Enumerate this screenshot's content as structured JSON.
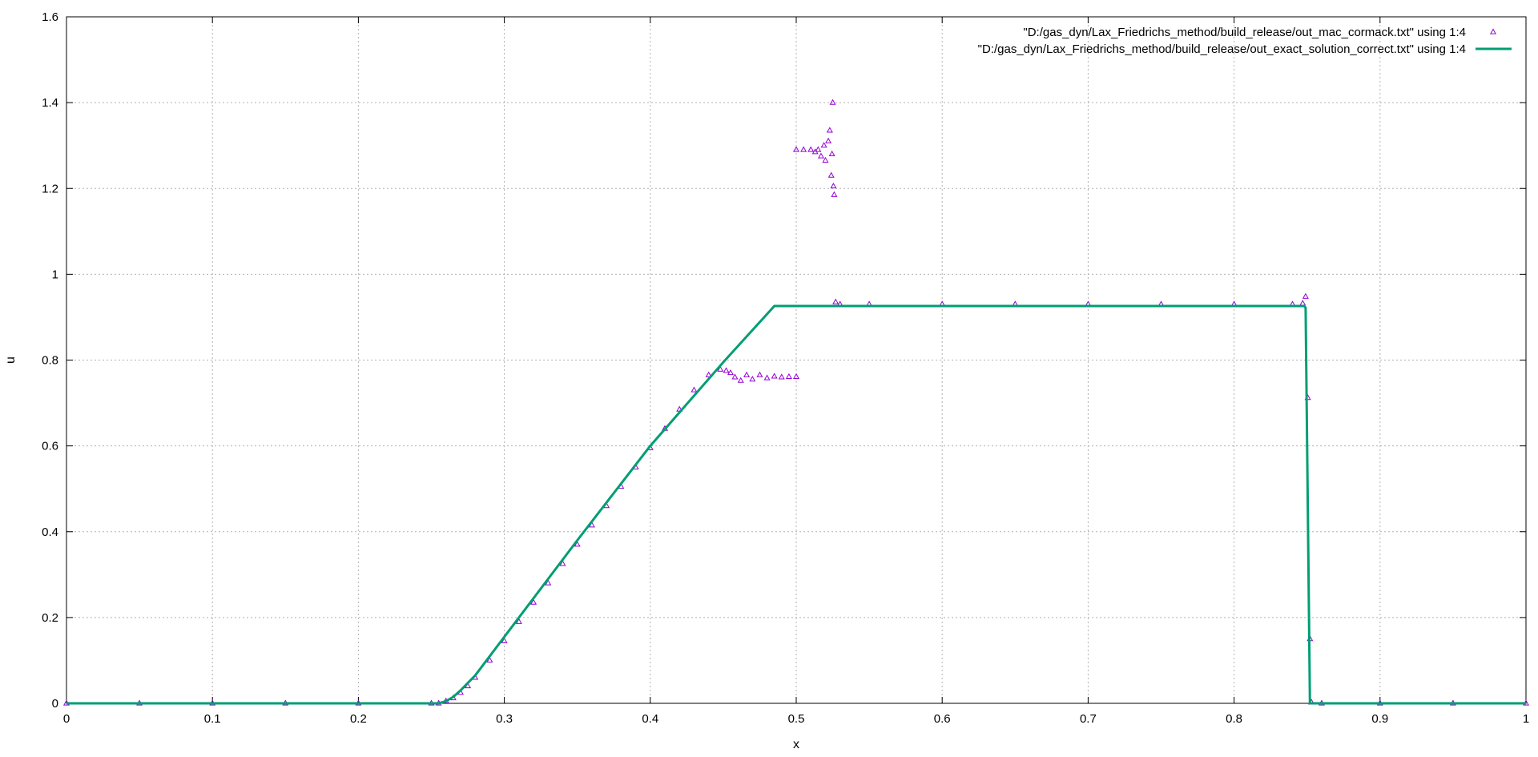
{
  "chart_data": {
    "type": "line",
    "xlabel": "x",
    "ylabel": "u",
    "xlim": [
      0,
      1
    ],
    "ylim": [
      0,
      1.6
    ],
    "x_ticks": [
      "0",
      "0.1",
      "0.2",
      "0.3",
      "0.4",
      "0.5",
      "0.6",
      "0.7",
      "0.8",
      "0.9",
      "1"
    ],
    "y_ticks": [
      "0",
      "0.2",
      "0.4",
      "0.6",
      "0.8",
      "1",
      "1.2",
      "1.4",
      "1.6"
    ],
    "x_tick_values": [
      0,
      0.1,
      0.2,
      0.3,
      0.4,
      0.5,
      0.6,
      0.7,
      0.8,
      0.9,
      1.0
    ],
    "y_tick_values": [
      0,
      0.2,
      0.4,
      0.6,
      0.8,
      1.0,
      1.2,
      1.4,
      1.6
    ],
    "grid": true,
    "legend_position": "top-right",
    "series": [
      {
        "name": "\"D:/gas_dyn/Lax_Friedrichs_method/build_release/out_mac_cormack.txt\" using 1:4",
        "style": "points",
        "marker": "triangle",
        "color": "#9400d3",
        "points": [
          [
            0.0,
            0.0
          ],
          [
            0.05,
            0.0
          ],
          [
            0.1,
            0.0
          ],
          [
            0.15,
            0.0
          ],
          [
            0.2,
            0.0
          ],
          [
            0.25,
            0.0
          ],
          [
            0.255,
            0.0
          ],
          [
            0.26,
            0.005
          ],
          [
            0.265,
            0.012
          ],
          [
            0.27,
            0.025
          ],
          [
            0.275,
            0.04
          ],
          [
            0.28,
            0.06
          ],
          [
            0.29,
            0.1
          ],
          [
            0.3,
            0.145
          ],
          [
            0.31,
            0.19
          ],
          [
            0.32,
            0.235
          ],
          [
            0.33,
            0.28
          ],
          [
            0.34,
            0.325
          ],
          [
            0.35,
            0.37
          ],
          [
            0.36,
            0.415
          ],
          [
            0.37,
            0.46
          ],
          [
            0.38,
            0.505
          ],
          [
            0.39,
            0.55
          ],
          [
            0.4,
            0.595
          ],
          [
            0.41,
            0.64
          ],
          [
            0.42,
            0.685
          ],
          [
            0.43,
            0.73
          ],
          [
            0.44,
            0.765
          ],
          [
            0.448,
            0.778
          ],
          [
            0.452,
            0.775
          ],
          [
            0.455,
            0.77
          ],
          [
            0.458,
            0.76
          ],
          [
            0.462,
            0.752
          ],
          [
            0.466,
            0.765
          ],
          [
            0.47,
            0.755
          ],
          [
            0.475,
            0.765
          ],
          [
            0.48,
            0.758
          ],
          [
            0.485,
            0.762
          ],
          [
            0.49,
            0.76
          ],
          [
            0.495,
            0.761
          ],
          [
            0.5,
            0.761
          ],
          [
            0.5,
            1.29
          ],
          [
            0.505,
            1.29
          ],
          [
            0.51,
            1.29
          ],
          [
            0.513,
            1.285
          ],
          [
            0.515,
            1.29
          ],
          [
            0.517,
            1.275
          ],
          [
            0.519,
            1.3
          ],
          [
            0.52,
            1.265
          ],
          [
            0.522,
            1.31
          ],
          [
            0.523,
            1.335
          ],
          [
            0.524,
            1.23
          ],
          [
            0.5245,
            1.28
          ],
          [
            0.525,
            1.4
          ],
          [
            0.5255,
            1.205
          ],
          [
            0.526,
            1.185
          ],
          [
            0.527,
            0.935
          ],
          [
            0.53,
            0.93
          ],
          [
            0.55,
            0.93
          ],
          [
            0.6,
            0.93
          ],
          [
            0.65,
            0.93
          ],
          [
            0.7,
            0.93
          ],
          [
            0.75,
            0.93
          ],
          [
            0.8,
            0.93
          ],
          [
            0.84,
            0.93
          ],
          [
            0.847,
            0.932
          ],
          [
            0.849,
            0.948
          ],
          [
            0.8505,
            0.712
          ],
          [
            0.852,
            0.15
          ],
          [
            0.853,
            0.002
          ],
          [
            0.86,
            0.0
          ],
          [
            0.9,
            0.0
          ],
          [
            0.95,
            0.0
          ],
          [
            1.0,
            0.0
          ]
        ]
      },
      {
        "name": "\"D:/gas_dyn/Lax_Friedrichs_method/build_release/out_exact_solution_correct.txt\" using 1:4",
        "style": "line",
        "color": "#009e73",
        "points": [
          [
            0.0,
            0.0
          ],
          [
            0.255,
            0.0
          ],
          [
            0.26,
            0.005
          ],
          [
            0.265,
            0.015
          ],
          [
            0.27,
            0.03
          ],
          [
            0.28,
            0.065
          ],
          [
            0.3,
            0.155
          ],
          [
            0.35,
            0.38
          ],
          [
            0.4,
            0.6
          ],
          [
            0.45,
            0.795
          ],
          [
            0.485,
            0.926
          ],
          [
            0.527,
            0.926
          ],
          [
            0.6,
            0.926
          ],
          [
            0.7,
            0.926
          ],
          [
            0.8,
            0.926
          ],
          [
            0.848,
            0.926
          ],
          [
            0.849,
            0.922
          ],
          [
            0.852,
            0.0
          ],
          [
            0.9,
            0.0
          ],
          [
            1.0,
            0.0
          ]
        ]
      }
    ]
  }
}
